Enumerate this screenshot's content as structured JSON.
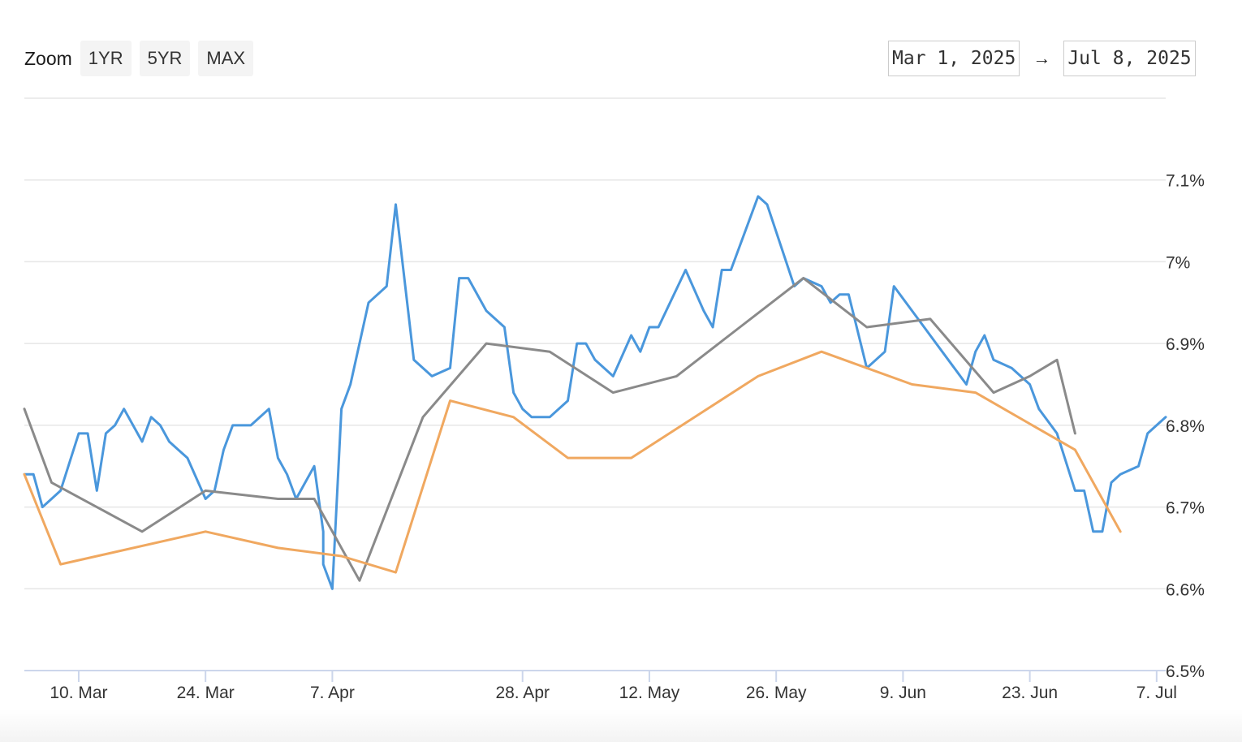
{
  "zoom": {
    "label": "Zoom",
    "buttons": [
      "1YR",
      "5YR",
      "MAX"
    ]
  },
  "range": {
    "from": "Mar 1, 2025",
    "arrow": "→",
    "to": "Jul 8, 2025"
  },
  "colors": {
    "grid": "#e6e6e6",
    "axis": "#ccd6eb",
    "series_blue": "#4a97dc",
    "series_gray": "#8a8a8a",
    "series_orange": "#f0a860"
  },
  "chart_data": {
    "type": "line",
    "title": "",
    "xlabel": "",
    "ylabel": "",
    "x_range": [
      "2025-03-04",
      "2025-07-08"
    ],
    "ylim": [
      6.5,
      7.2
    ],
    "y_ticks": [
      6.5,
      6.6,
      6.7,
      6.8,
      6.9,
      7.0,
      7.1
    ],
    "y_tick_labels": [
      "6.5%",
      "6.6%",
      "6.7%",
      "6.8%",
      "6.9%",
      "7%",
      "7.1%"
    ],
    "x_ticks": [
      "2025-03-10",
      "2025-03-24",
      "2025-04-07",
      "2025-04-28",
      "2025-05-12",
      "2025-05-26",
      "2025-06-09",
      "2025-06-23",
      "2025-07-07"
    ],
    "x_tick_labels": [
      "10. Mar",
      "24. Mar",
      "7. Apr",
      "28. Apr",
      "12. May",
      "26. May",
      "9. Jun",
      "23. Jun",
      "7. Jul"
    ],
    "grid": true,
    "legend": "none",
    "series": [
      {
        "color": "#4a97dc",
        "points": [
          [
            "2025-03-04",
            6.74
          ],
          [
            "2025-03-05",
            6.74
          ],
          [
            "2025-03-06",
            6.7
          ],
          [
            "2025-03-07",
            6.71
          ],
          [
            "2025-03-08",
            6.72
          ],
          [
            "2025-03-10",
            6.79
          ],
          [
            "2025-03-11",
            6.79
          ],
          [
            "2025-03-12",
            6.72
          ],
          [
            "2025-03-13",
            6.79
          ],
          [
            "2025-03-14",
            6.8
          ],
          [
            "2025-03-15",
            6.82
          ],
          [
            "2025-03-17",
            6.78
          ],
          [
            "2025-03-18",
            6.81
          ],
          [
            "2025-03-19",
            6.8
          ],
          [
            "2025-03-20",
            6.78
          ],
          [
            "2025-03-21",
            6.77
          ],
          [
            "2025-03-22",
            6.76
          ],
          [
            "2025-03-24",
            6.71
          ],
          [
            "2025-03-25",
            6.72
          ],
          [
            "2025-03-26",
            6.77
          ],
          [
            "2025-03-27",
            6.8
          ],
          [
            "2025-03-28",
            6.8
          ],
          [
            "2025-03-29",
            6.8
          ],
          [
            "2025-03-31",
            6.82
          ],
          [
            "2025-04-01",
            6.76
          ],
          [
            "2025-04-02",
            6.74
          ],
          [
            "2025-04-03",
            6.71
          ],
          [
            "2025-04-05",
            6.75
          ],
          [
            "2025-04-06",
            6.67
          ],
          [
            "2025-04-06",
            6.63
          ],
          [
            "2025-04-07",
            6.6
          ],
          [
            "2025-04-08",
            6.82
          ],
          [
            "2025-04-09",
            6.85
          ],
          [
            "2025-04-11",
            6.95
          ],
          [
            "2025-04-13",
            6.97
          ],
          [
            "2025-04-14",
            7.07
          ],
          [
            "2025-04-16",
            6.88
          ],
          [
            "2025-04-18",
            6.86
          ],
          [
            "2025-04-20",
            6.87
          ],
          [
            "2025-04-21",
            6.98
          ],
          [
            "2025-04-22",
            6.98
          ],
          [
            "2025-04-24",
            6.94
          ],
          [
            "2025-04-26",
            6.92
          ],
          [
            "2025-04-27",
            6.84
          ],
          [
            "2025-04-28",
            6.82
          ],
          [
            "2025-04-29",
            6.81
          ],
          [
            "2025-05-01",
            6.81
          ],
          [
            "2025-05-03",
            6.83
          ],
          [
            "2025-05-04",
            6.9
          ],
          [
            "2025-05-05",
            6.9
          ],
          [
            "2025-05-06",
            6.88
          ],
          [
            "2025-05-08",
            6.86
          ],
          [
            "2025-05-10",
            6.91
          ],
          [
            "2025-05-11",
            6.89
          ],
          [
            "2025-05-12",
            6.92
          ],
          [
            "2025-05-13",
            6.92
          ],
          [
            "2025-05-16",
            6.99
          ],
          [
            "2025-05-18",
            6.94
          ],
          [
            "2025-05-19",
            6.92
          ],
          [
            "2025-05-20",
            6.99
          ],
          [
            "2025-05-21",
            6.99
          ],
          [
            "2025-05-24",
            7.08
          ],
          [
            "2025-05-25",
            7.07
          ],
          [
            "2025-05-28",
            6.97
          ],
          [
            "2025-05-29",
            6.98
          ],
          [
            "2025-05-31",
            6.97
          ],
          [
            "2025-06-01",
            6.95
          ],
          [
            "2025-06-02",
            6.96
          ],
          [
            "2025-06-03",
            6.96
          ],
          [
            "2025-06-05",
            6.87
          ],
          [
            "2025-06-07",
            6.89
          ],
          [
            "2025-06-08",
            6.97
          ],
          [
            "2025-06-12",
            6.91
          ],
          [
            "2025-06-14",
            6.88
          ],
          [
            "2025-06-16",
            6.85
          ],
          [
            "2025-06-17",
            6.89
          ],
          [
            "2025-06-18",
            6.91
          ],
          [
            "2025-06-19",
            6.88
          ],
          [
            "2025-06-21",
            6.87
          ],
          [
            "2025-06-23",
            6.85
          ],
          [
            "2025-06-24",
            6.82
          ],
          [
            "2025-06-26",
            6.79
          ],
          [
            "2025-06-28",
            6.72
          ],
          [
            "2025-06-29",
            6.72
          ],
          [
            "2025-06-30",
            6.67
          ],
          [
            "2025-07-01",
            6.67
          ],
          [
            "2025-07-02",
            6.73
          ],
          [
            "2025-07-03",
            6.74
          ],
          [
            "2025-07-05",
            6.75
          ],
          [
            "2025-07-06",
            6.79
          ],
          [
            "2025-07-08",
            6.81
          ]
        ]
      },
      {
        "color": "#8a8a8a",
        "points": [
          [
            "2025-03-04",
            6.82
          ],
          [
            "2025-03-07",
            6.73
          ],
          [
            "2025-03-17",
            6.67
          ],
          [
            "2025-03-24",
            6.72
          ],
          [
            "2025-04-01",
            6.71
          ],
          [
            "2025-04-05",
            6.71
          ],
          [
            "2025-04-10",
            6.61
          ],
          [
            "2025-04-17",
            6.81
          ],
          [
            "2025-04-24",
            6.9
          ],
          [
            "2025-05-01",
            6.89
          ],
          [
            "2025-05-08",
            6.84
          ],
          [
            "2025-05-15",
            6.86
          ],
          [
            "2025-05-22",
            6.92
          ],
          [
            "2025-05-29",
            6.98
          ],
          [
            "2025-06-05",
            6.92
          ],
          [
            "2025-06-12",
            6.93
          ],
          [
            "2025-06-19",
            6.84
          ],
          [
            "2025-06-23",
            6.86
          ],
          [
            "2025-06-26",
            6.88
          ],
          [
            "2025-06-28",
            6.79
          ]
        ]
      },
      {
        "color": "#f0a860",
        "points": [
          [
            "2025-03-04",
            6.74
          ],
          [
            "2025-03-08",
            6.63
          ],
          [
            "2025-03-24",
            6.67
          ],
          [
            "2025-04-01",
            6.65
          ],
          [
            "2025-04-08",
            6.64
          ],
          [
            "2025-04-14",
            6.62
          ],
          [
            "2025-04-20",
            6.83
          ],
          [
            "2025-04-27",
            6.81
          ],
          [
            "2025-05-03",
            6.76
          ],
          [
            "2025-05-10",
            6.76
          ],
          [
            "2025-05-24",
            6.86
          ],
          [
            "2025-05-31",
            6.89
          ],
          [
            "2025-06-10",
            6.85
          ],
          [
            "2025-06-17",
            6.84
          ],
          [
            "2025-06-28",
            6.77
          ],
          [
            "2025-07-03",
            6.67
          ]
        ]
      }
    ]
  }
}
